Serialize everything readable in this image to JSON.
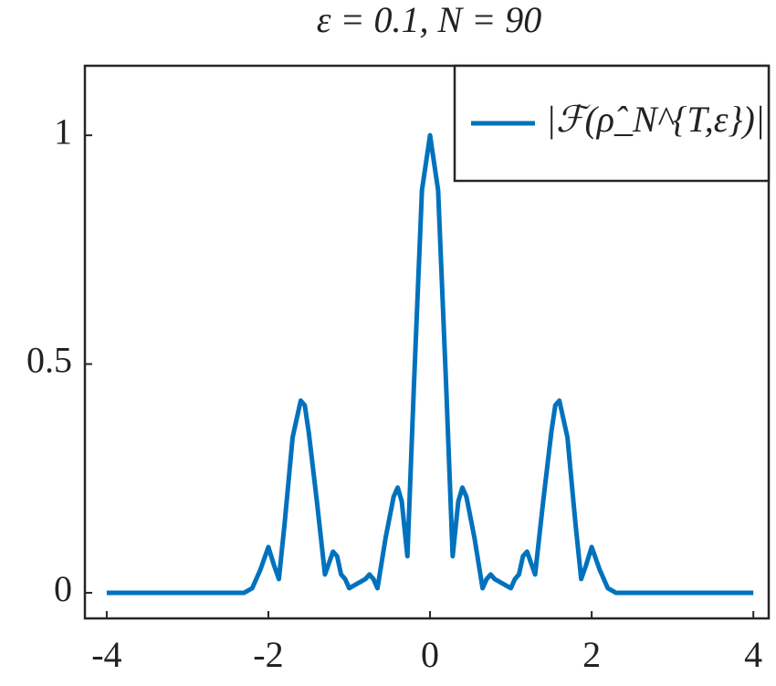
{
  "chart_data": {
    "type": "line",
    "title": "ε = 0.1, N = 90",
    "x": [
      -4,
      -3,
      -2.5,
      -2.3,
      -2.2,
      -2.1,
      -2.0,
      -1.93,
      -1.87,
      -1.8,
      -1.7,
      -1.6,
      -1.55,
      -1.5,
      -1.4,
      -1.3,
      -1.2,
      -1.15,
      -1.1,
      -1.05,
      -1.0,
      -0.9,
      -0.8,
      -0.75,
      -0.7,
      -0.65,
      -0.55,
      -0.45,
      -0.4,
      -0.35,
      -0.28,
      -0.2,
      -0.1,
      0,
      0.1,
      0.2,
      0.28,
      0.35,
      0.4,
      0.45,
      0.55,
      0.65,
      0.7,
      0.75,
      0.8,
      0.9,
      1.0,
      1.05,
      1.1,
      1.15,
      1.2,
      1.3,
      1.4,
      1.5,
      1.55,
      1.6,
      1.7,
      1.8,
      1.87,
      1.93,
      2.0,
      2.1,
      2.2,
      2.3,
      2.5,
      3,
      4
    ],
    "series": [
      {
        "name": "|ℱ(ρ̂_N^{T,ε})|",
        "color": "#0072bd",
        "values": [
          0,
          0,
          0,
          0,
          0.01,
          0.05,
          0.1,
          0.06,
          0.03,
          0.15,
          0.34,
          0.42,
          0.41,
          0.35,
          0.2,
          0.04,
          0.09,
          0.08,
          0.04,
          0.03,
          0.01,
          0.02,
          0.03,
          0.04,
          0.03,
          0.01,
          0.12,
          0.21,
          0.23,
          0.2,
          0.08,
          0.45,
          0.88,
          1.0,
          0.88,
          0.45,
          0.08,
          0.2,
          0.23,
          0.21,
          0.12,
          0.01,
          0.03,
          0.04,
          0.03,
          0.02,
          0.01,
          0.03,
          0.04,
          0.08,
          0.09,
          0.04,
          0.2,
          0.35,
          0.41,
          0.42,
          0.34,
          0.15,
          0.03,
          0.06,
          0.1,
          0.05,
          0.01,
          0,
          0,
          0,
          0
        ]
      }
    ],
    "xlim": [
      -4.27,
      4.19
    ],
    "ylim": [
      -0.056,
      1.152
    ],
    "xticks": [
      -4,
      -2,
      0,
      2,
      4
    ],
    "yticks": [
      0,
      0.5,
      1
    ],
    "grid": false,
    "legend": "northeast"
  }
}
